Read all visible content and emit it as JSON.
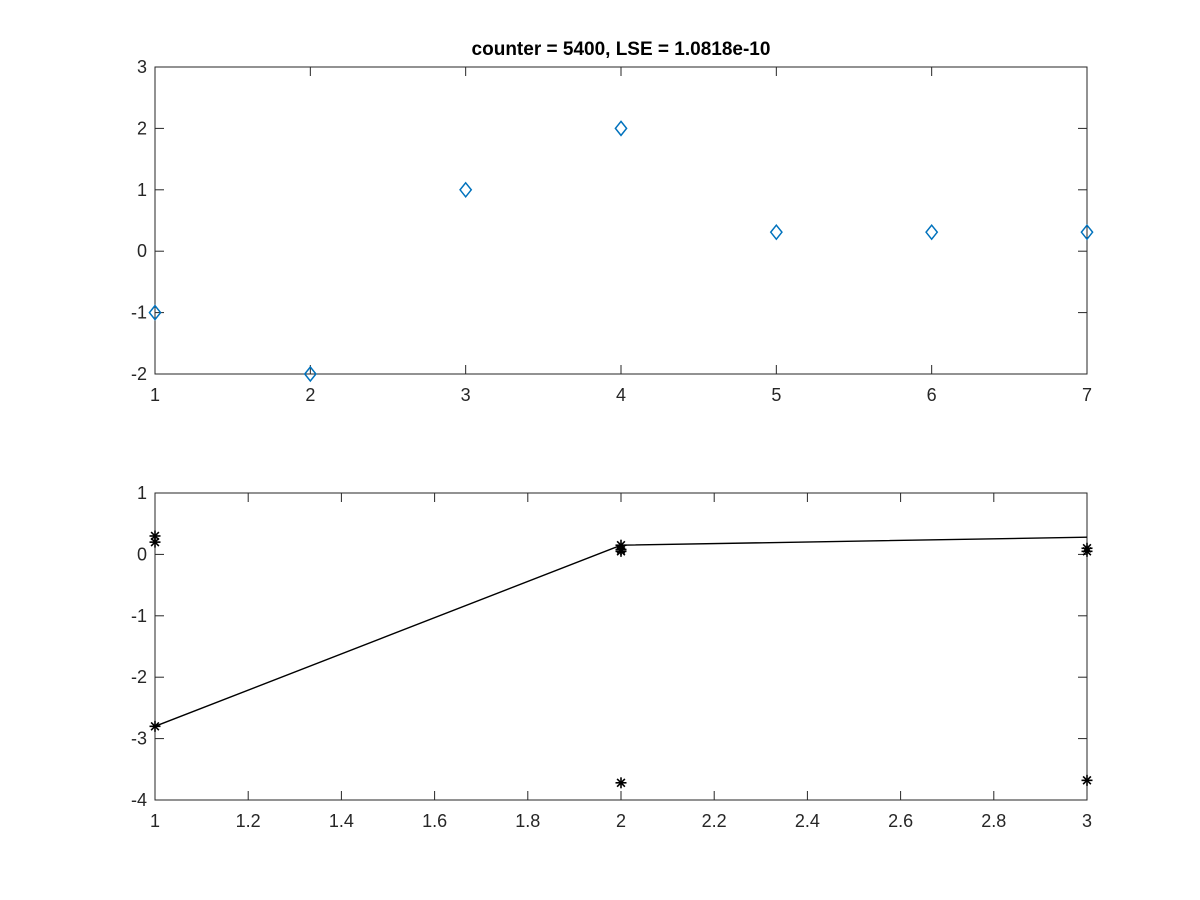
{
  "chart_data": [
    {
      "type": "scatter",
      "title": "counter = 5400, LSE = 1.0818e-10",
      "xlabel": "",
      "ylabel": "",
      "xlim": [
        1,
        7
      ],
      "ylim": [
        -2,
        3
      ],
      "xticks": [
        1,
        2,
        3,
        4,
        5,
        6,
        7
      ],
      "yticks": [
        -2,
        -1,
        0,
        1,
        2,
        3
      ],
      "xtick_labels": [
        "1",
        "2",
        "3",
        "4",
        "5",
        "6",
        "7"
      ],
      "ytick_labels": [
        "-2",
        "-1",
        "0",
        "1",
        "2",
        "3"
      ],
      "grid": false,
      "series": [
        {
          "marker": "diamond",
          "color": "#0072BD",
          "x": [
            1,
            2,
            3,
            4,
            5,
            6,
            7
          ],
          "y": [
            -1,
            -2,
            1,
            2,
            0.31,
            0.31,
            0.31
          ]
        }
      ]
    },
    {
      "type": "line",
      "title": "",
      "xlabel": "",
      "ylabel": "",
      "xlim": [
        1,
        3
      ],
      "ylim": [
        -4,
        1
      ],
      "xticks": [
        1,
        1.2,
        1.4,
        1.6,
        1.8,
        2,
        2.2,
        2.4,
        2.6,
        2.8,
        3
      ],
      "yticks": [
        -4,
        -3,
        -2,
        -1,
        0,
        1
      ],
      "xtick_labels": [
        "1",
        "1.2",
        "1.4",
        "1.6",
        "1.8",
        "2",
        "2.2",
        "2.4",
        "2.6",
        "2.8",
        "3"
      ],
      "ytick_labels": [
        "-4",
        "-3",
        "-2",
        "-1",
        "0",
        "1"
      ],
      "grid": false,
      "series": [
        {
          "style": "line",
          "color": "#000000",
          "x": [
            1,
            2,
            3
          ],
          "y": [
            -2.8,
            0.15,
            0.28
          ]
        },
        {
          "style": "markers",
          "marker": "asterisk",
          "color": "#000000",
          "x": [
            1,
            1,
            1,
            2,
            2,
            2,
            2,
            3,
            3,
            3
          ],
          "y": [
            0.3,
            0.2,
            -2.8,
            0.15,
            0.08,
            0.05,
            -3.72,
            0.1,
            0.05,
            -3.68
          ]
        }
      ]
    }
  ]
}
